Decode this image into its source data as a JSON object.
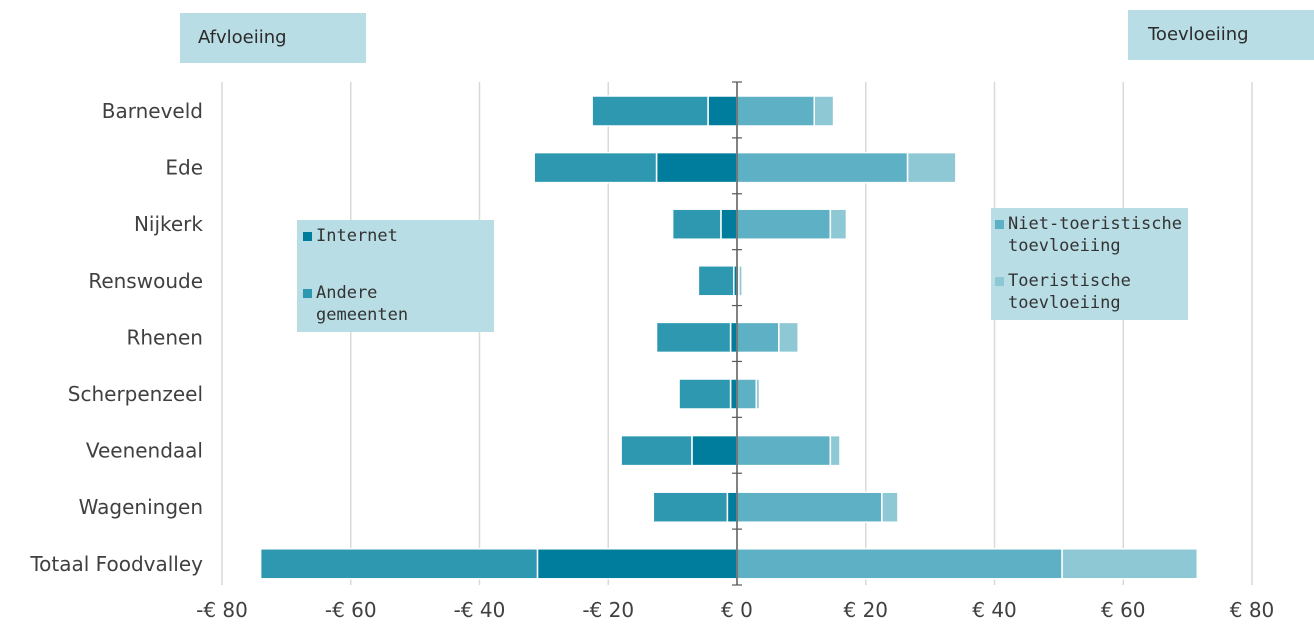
{
  "labels": {
    "left_tag": "Afvloeiing",
    "right_tag": "Toevloeiing"
  },
  "legend_left": [
    {
      "label": "Internet",
      "color": "#007c9c"
    },
    {
      "label": "Andere gemeenten",
      "color": "#2e98b0"
    }
  ],
  "legend_right": [
    {
      "label": "Niet-toeristische toevloeiing",
      "color": "#5eb1c4"
    },
    {
      "label": "Toeristische toevloeiing",
      "color": "#8fc8d5"
    }
  ],
  "chart_data": {
    "type": "bar",
    "orientation": "horizontal",
    "stacked": true,
    "categories": [
      "Barneveld",
      "Ede",
      "Nijkerk",
      "Renswoude",
      "Rhenen",
      "Scherpenzeel",
      "Veenendaal",
      "Wageningen",
      "Totaal Foodvalley"
    ],
    "series": [
      {
        "name": "Internet",
        "side": "left",
        "color": "#007c9c",
        "values": [
          -4.5,
          -12.5,
          -2.5,
          -0.5,
          -1,
          -1,
          -7,
          -1.5,
          -31
        ]
      },
      {
        "name": "Andere gemeenten",
        "side": "left",
        "color": "#2e98b0",
        "values": [
          -18,
          -19,
          -7.5,
          -5.5,
          -11.5,
          -8,
          -11,
          -11.5,
          -43
        ]
      },
      {
        "name": "Niet-toeristische toevloeiing",
        "side": "right",
        "color": "#5eb1c4",
        "values": [
          12,
          26.5,
          14.5,
          0.3,
          6.5,
          3,
          14.5,
          22.5,
          50.5
        ]
      },
      {
        "name": "Toeristische toevloeiing",
        "side": "right",
        "color": "#8fc8d5",
        "values": [
          3,
          7.5,
          2.5,
          0.5,
          3,
          0.5,
          1.5,
          2.5,
          21
        ]
      }
    ],
    "xlim": [
      -80,
      80
    ],
    "xticks": [
      -80,
      -60,
      -40,
      -20,
      0,
      20,
      40,
      60,
      80
    ],
    "xtick_labels": [
      "-€ 80",
      "-€ 60",
      "-€ 40",
      "-€ 20",
      "€ 0",
      "€ 20",
      "€ 40",
      "€ 60",
      "€ 80"
    ],
    "grid": true,
    "colors": {
      "grid": "#d9d9d9",
      "axis": "#595959",
      "text": "#404040"
    }
  }
}
